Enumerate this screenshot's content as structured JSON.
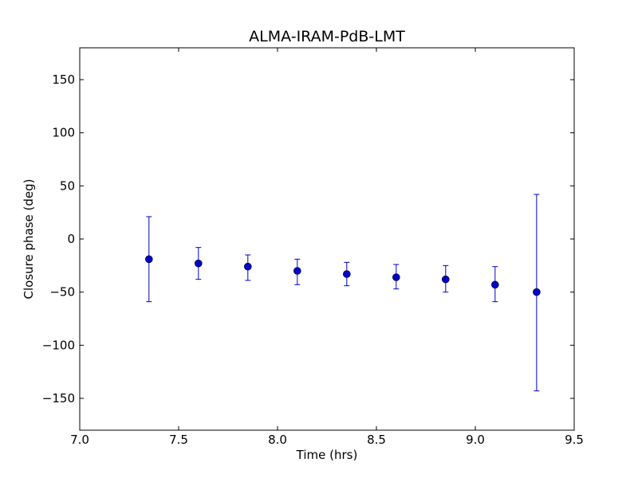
{
  "chart_data": {
    "type": "scatter",
    "title": "ALMA-IRAM-PdB-LMT",
    "xlabel": "Time (hrs)",
    "ylabel": "Closure phase (deg)",
    "xlim": [
      7.0,
      9.5
    ],
    "ylim": [
      -180,
      180
    ],
    "xticks": [
      7.0,
      7.5,
      8.0,
      8.5,
      9.0,
      9.5
    ],
    "xtick_labels": [
      "7.0",
      "7.5",
      "8.0",
      "8.5",
      "9.0",
      "9.5"
    ],
    "yticks": [
      150,
      100,
      50,
      0,
      -50,
      -100,
      -150
    ],
    "ytick_labels": [
      "150",
      "100",
      "50",
      "0",
      "−50",
      "−100",
      "−150"
    ],
    "grid": false,
    "marker_color": "#0000cc",
    "errorbar_color": "#0000cc",
    "series": [
      {
        "x": [
          7.35,
          7.6,
          7.85,
          8.1,
          8.35,
          8.6,
          8.85,
          9.1,
          9.31
        ],
        "y": [
          -19,
          -23,
          -26,
          -30,
          -33,
          -36,
          -38,
          -43,
          -50
        ],
        "yerr_low": [
          -59,
          -38,
          -39,
          -43,
          -44,
          -47,
          -50,
          -59,
          -143
        ],
        "yerr_high": [
          21,
          -8,
          -15,
          -19,
          -22,
          -24,
          -25,
          -26,
          42
        ]
      }
    ]
  }
}
